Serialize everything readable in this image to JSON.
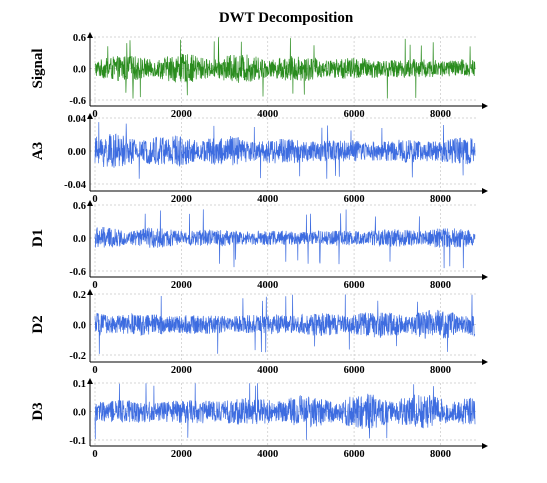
{
  "chart_data": [
    {
      "type": "line",
      "title": "DWT Decomposition",
      "ylabel": "Signal",
      "xlim": [
        0,
        8800
      ],
      "ylim": [
        -0.6,
        0.6
      ],
      "xticks": [
        0,
        2000,
        4000,
        6000,
        8000
      ],
      "yticks": [
        0.6,
        0.0,
        -0.6
      ],
      "ytick_labels": [
        "0.6",
        "0.0",
        "-0.6"
      ],
      "grid": true,
      "color": "#2a8c1e",
      "series": [
        {
          "x_start": 0,
          "x_end": 8800,
          "amplitude_typical": 0.2,
          "amplitude_peak": 0.6
        }
      ]
    },
    {
      "type": "line",
      "ylabel": "A3",
      "xlim": [
        0,
        8800
      ],
      "ylim": [
        -0.04,
        0.04
      ],
      "xticks": [
        0,
        2000,
        4000,
        6000,
        8000
      ],
      "yticks": [
        0.04,
        0.0,
        -0.04
      ],
      "ytick_labels": [
        "0.04",
        "0.00",
        "-0.04"
      ],
      "grid": true,
      "color": "#3d6ce0",
      "series": [
        {
          "x_start": 0,
          "x_end": 8800,
          "amplitude_typical": 0.015,
          "amplitude_peak": 0.035
        }
      ]
    },
    {
      "type": "line",
      "ylabel": "D1",
      "xlim": [
        0,
        8800
      ],
      "ylim": [
        -0.6,
        0.6
      ],
      "xticks": [
        0,
        2000,
        4000,
        6000,
        8000
      ],
      "yticks": [
        0.6,
        0.0,
        -0.6
      ],
      "ytick_labels": [
        "0.6",
        "0.0",
        "-0.6"
      ],
      "grid": true,
      "color": "#3d6ce0",
      "series": [
        {
          "x_start": 0,
          "x_end": 8800,
          "amplitude_typical": 0.15,
          "amplitude_peak": 0.55
        }
      ]
    },
    {
      "type": "line",
      "ylabel": "D2",
      "xlim": [
        0,
        8800
      ],
      "ylim": [
        -0.2,
        0.2
      ],
      "xticks": [
        0,
        2000,
        4000,
        6000,
        8000
      ],
      "yticks": [
        0.2,
        0.0,
        -0.2
      ],
      "ytick_labels": [
        "0.2",
        "0.0",
        "-0.2"
      ],
      "grid": true,
      "color": "#3d6ce0",
      "series": [
        {
          "x_start": 0,
          "x_end": 8800,
          "amplitude_typical": 0.07,
          "amplitude_peak": 0.2
        }
      ]
    },
    {
      "type": "line",
      "ylabel": "D3",
      "xlim": [
        0,
        8800
      ],
      "ylim": [
        -0.1,
        0.1
      ],
      "xticks": [
        0,
        2000,
        4000,
        6000,
        8000
      ],
      "yticks": [
        0.1,
        0.0,
        -0.1
      ],
      "ytick_labels": [
        "0.1",
        "0.0",
        "-0.1"
      ],
      "grid": true,
      "color": "#3d6ce0",
      "series": [
        {
          "x_start": 0,
          "x_end": 8800,
          "amplitude_typical": 0.045,
          "amplitude_peak": 0.12
        }
      ]
    }
  ]
}
